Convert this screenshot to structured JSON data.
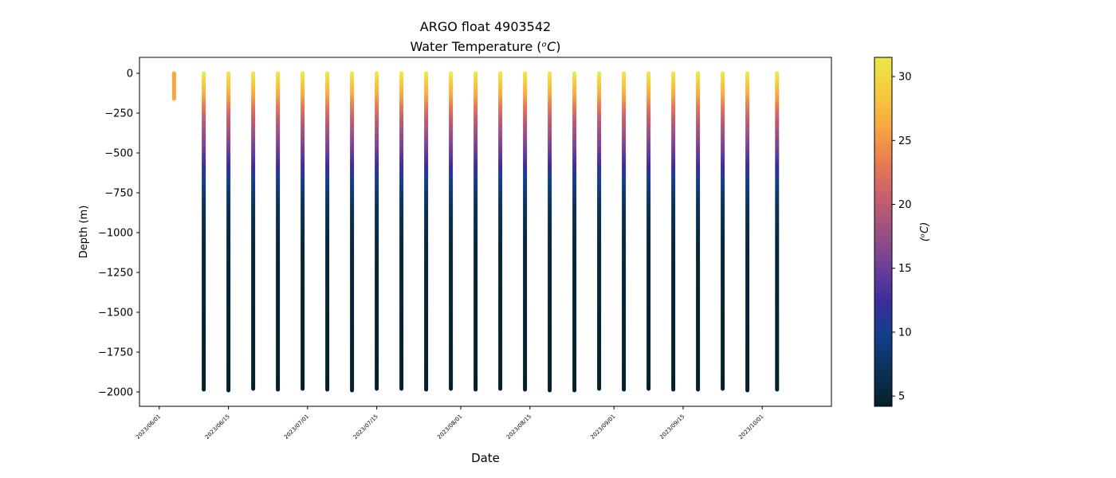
{
  "chart_data": {
    "type": "scatter",
    "title": "ARGO float 4903542",
    "subtitle_prefix": "Water Temperature (",
    "subtitle_unit_italic": "ᵒC",
    "subtitle_suffix": ")",
    "xlabel": "Date",
    "ylabel": "Depth (m)",
    "colorbar_label_italic": "(ᵒC)",
    "colormap": "thermal",
    "colormap_stops": [
      "#04202a",
      "#0b3156",
      "#123f8a",
      "#3a2d9c",
      "#6e3f96",
      "#9b5081",
      "#c75f6c",
      "#e97c52",
      "#f6a741",
      "#f6cb3f",
      "#eae84a"
    ],
    "color_range": [
      4.2,
      31.5
    ],
    "colorbar_ticks": [
      5,
      10,
      15,
      20,
      25,
      30
    ],
    "colorbar_tick_labels": [
      "5",
      "10",
      "15",
      "20",
      "25",
      "30"
    ],
    "x_date_range": [
      "2023-05-28",
      "2023-10-15"
    ],
    "xticks": [
      "2023-06-01",
      "2023-06-15",
      "2023-07-01",
      "2023-07-15",
      "2023-08-01",
      "2023-08-15",
      "2023-09-01",
      "2023-09-15",
      "2023-10-01"
    ],
    "xtick_labels": [
      "2023/06/01",
      "2023/06/15",
      "2023/07/01",
      "2023/07/15",
      "2023/08/01",
      "2023/08/15",
      "2023/09/01",
      "2023/09/15",
      "2023/10/01"
    ],
    "ylim": [
      -2090,
      100
    ],
    "yticks": [
      0,
      -250,
      -500,
      -750,
      -1000,
      -1250,
      -1500,
      -1750,
      -2000
    ],
    "ytick_labels": [
      "0",
      "−250",
      "−500",
      "−750",
      "−1000",
      "−1250",
      "−1500",
      "−1750",
      "−2000"
    ],
    "profiles": [
      {
        "date": "2023-06-04",
        "max_depth": 160
      },
      {
        "date": "2023-06-10",
        "max_depth": 1985
      },
      {
        "date": "2023-06-15",
        "max_depth": 1990
      },
      {
        "date": "2023-06-20",
        "max_depth": 1980
      },
      {
        "date": "2023-06-25",
        "max_depth": 1985
      },
      {
        "date": "2023-06-30",
        "max_depth": 1980
      },
      {
        "date": "2023-07-05",
        "max_depth": 1985
      },
      {
        "date": "2023-07-10",
        "max_depth": 1990
      },
      {
        "date": "2023-07-15",
        "max_depth": 1980
      },
      {
        "date": "2023-07-20",
        "max_depth": 1980
      },
      {
        "date": "2023-07-25",
        "max_depth": 1985
      },
      {
        "date": "2023-07-30",
        "max_depth": 1980
      },
      {
        "date": "2023-08-04",
        "max_depth": 1985
      },
      {
        "date": "2023-08-09",
        "max_depth": 1980
      },
      {
        "date": "2023-08-14",
        "max_depth": 1985
      },
      {
        "date": "2023-08-19",
        "max_depth": 1990
      },
      {
        "date": "2023-08-24",
        "max_depth": 1990
      },
      {
        "date": "2023-08-29",
        "max_depth": 1980
      },
      {
        "date": "2023-09-03",
        "max_depth": 1985
      },
      {
        "date": "2023-09-08",
        "max_depth": 1980
      },
      {
        "date": "2023-09-13",
        "max_depth": 1985
      },
      {
        "date": "2023-09-18",
        "max_depth": 1985
      },
      {
        "date": "2023-09-23",
        "max_depth": 1980
      },
      {
        "date": "2023-09-28",
        "max_depth": 1990
      },
      {
        "date": "2023-10-04",
        "max_depth": 1985
      }
    ],
    "grid": false,
    "legend": "colorbar-right"
  }
}
